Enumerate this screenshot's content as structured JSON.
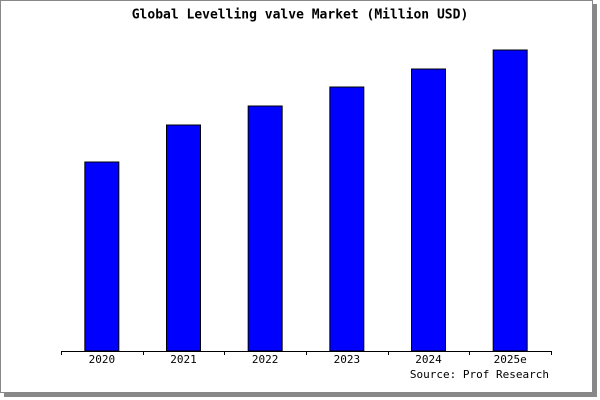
{
  "chart_data": {
    "type": "bar",
    "title": "Global Levelling valve Market (Million USD)",
    "categories": [
      "2020",
      "2021",
      "2022",
      "2023",
      "2024",
      "2025e"
    ],
    "values": [
      189,
      226,
      245,
      264,
      282,
      301
    ],
    "color": "#0000ff",
    "ylim": [
      0,
      303
    ],
    "source": "Source: Prof Research"
  }
}
